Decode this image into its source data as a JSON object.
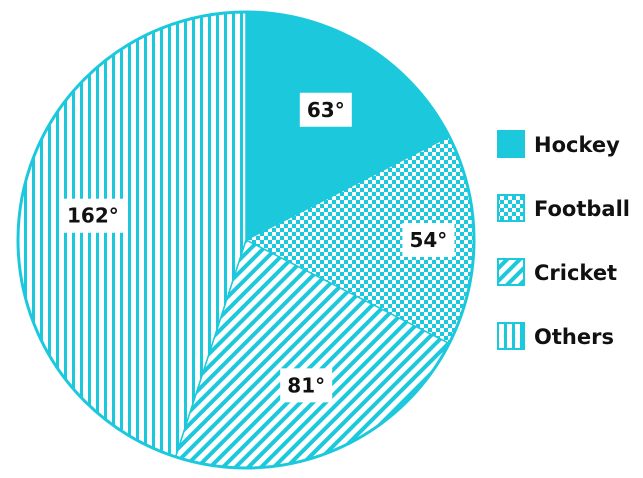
{
  "chart_data": {
    "type": "pie",
    "title": "",
    "start_angle_deg": 0,
    "direction": "clockwise",
    "slices": [
      {
        "name": "Hockey",
        "value": 63,
        "label": "63°",
        "pattern": "solid"
      },
      {
        "name": "Football",
        "value": 54,
        "label": "54°",
        "pattern": "checker"
      },
      {
        "name": "Cricket",
        "value": 81,
        "label": "81°",
        "pattern": "diagonal"
      },
      {
        "name": "Others",
        "value": 162,
        "label": "162°",
        "pattern": "vertical"
      }
    ],
    "legend": {
      "position": "right",
      "entries": [
        "Hockey",
        "Football",
        "Cricket",
        "Others"
      ]
    },
    "colors": {
      "accent": "#1CC9DC",
      "background": "#ffffff",
      "label_box": "#ffffff",
      "text": "#111111"
    }
  }
}
